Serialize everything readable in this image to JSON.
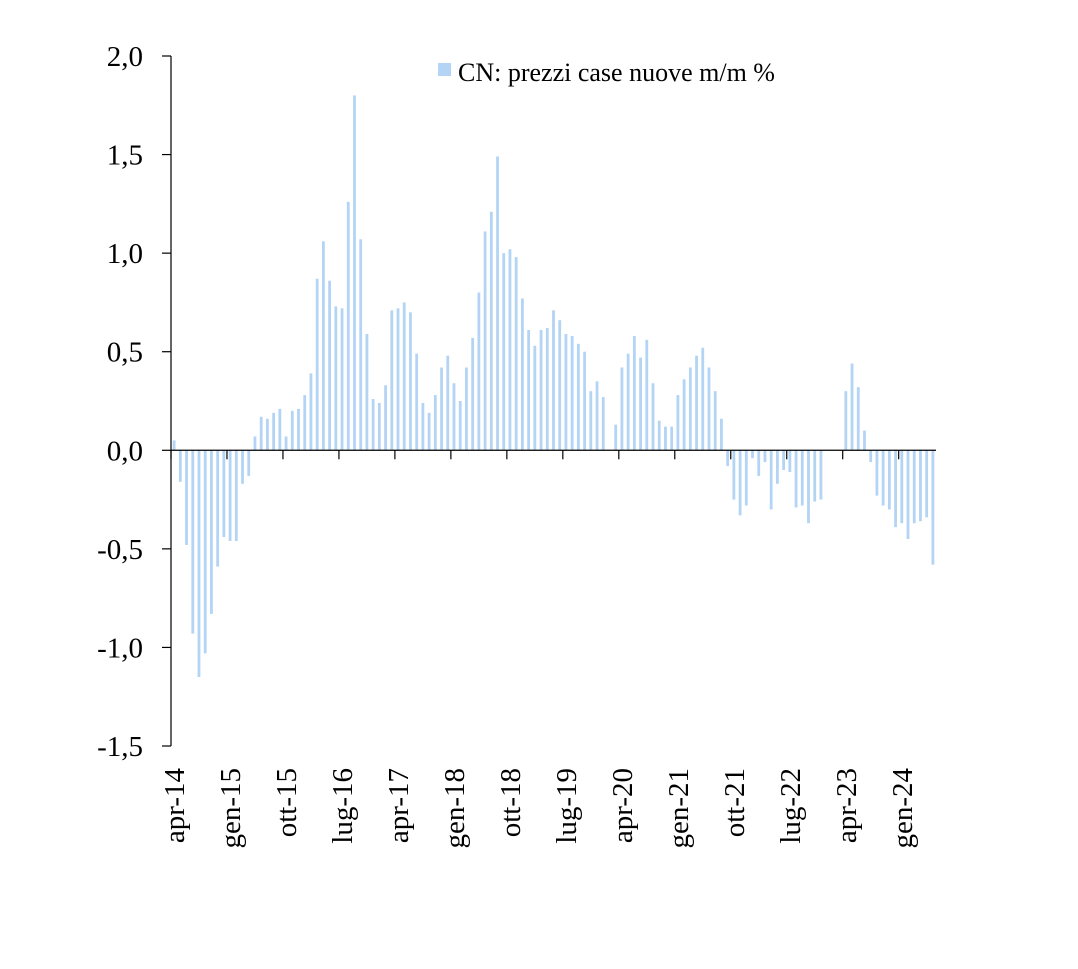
{
  "chart_data": {
    "type": "bar",
    "title": "",
    "xlabel": "",
    "ylabel": "",
    "ylim": [
      -1.5,
      2.0
    ],
    "yticks": [
      -1.5,
      -1.0,
      -0.5,
      0.0,
      0.5,
      1.0,
      1.5,
      2.0
    ],
    "ytick_labels": [
      "-1,5",
      "-1,0",
      "-0,5",
      "0,0",
      "0,5",
      "1,0",
      "1,5",
      "2,0"
    ],
    "grid": false,
    "legend_position": "top-right",
    "bar_color": "#b3d4f5",
    "xtick_labels": [
      "apr-14",
      "gen-15",
      "ott-15",
      "lug-16",
      "apr-17",
      "gen-18",
      "ott-18",
      "lug-19",
      "apr-20",
      "gen-21",
      "ott-21",
      "lug-22",
      "apr-23",
      "gen-24"
    ],
    "series": [
      {
        "name": "CN: prezzi case nuove m/m %",
        "values": [
          0.05,
          -0.16,
          -0.48,
          -0.93,
          -1.15,
          -1.03,
          -0.83,
          -0.59,
          -0.44,
          -0.46,
          -0.46,
          -0.17,
          -0.13,
          0.07,
          0.17,
          0.16,
          0.19,
          0.21,
          0.07,
          0.2,
          0.21,
          0.28,
          0.39,
          0.87,
          1.06,
          0.86,
          0.73,
          0.72,
          1.26,
          1.8,
          1.07,
          0.59,
          0.26,
          0.24,
          0.33,
          0.71,
          0.72,
          0.75,
          0.7,
          0.49,
          0.24,
          0.19,
          0.28,
          0.42,
          0.48,
          0.34,
          0.25,
          0.42,
          0.57,
          0.8,
          1.11,
          1.21,
          1.49,
          1.0,
          1.02,
          0.98,
          0.77,
          0.61,
          0.53,
          0.61,
          0.62,
          0.71,
          0.66,
          0.59,
          0.58,
          0.54,
          0.5,
          0.3,
          0.35,
          0.27,
          0.0,
          0.13,
          0.42,
          0.49,
          0.58,
          0.47,
          0.56,
          0.34,
          0.15,
          0.12,
          0.12,
          0.28,
          0.36,
          0.42,
          0.48,
          0.52,
          0.42,
          0.3,
          0.16,
          -0.08,
          -0.25,
          -0.33,
          -0.28,
          -0.04,
          -0.13,
          -0.06,
          -0.3,
          -0.17,
          -0.1,
          -0.11,
          -0.29,
          -0.28,
          -0.37,
          -0.26,
          -0.25,
          0.0,
          0.0,
          0.0,
          0.3,
          0.44,
          0.32,
          0.1,
          -0.06,
          -0.23,
          -0.28,
          -0.3,
          -0.39,
          -0.37,
          -0.45,
          -0.37,
          -0.36,
          -0.34,
          -0.58
        ]
      }
    ]
  }
}
